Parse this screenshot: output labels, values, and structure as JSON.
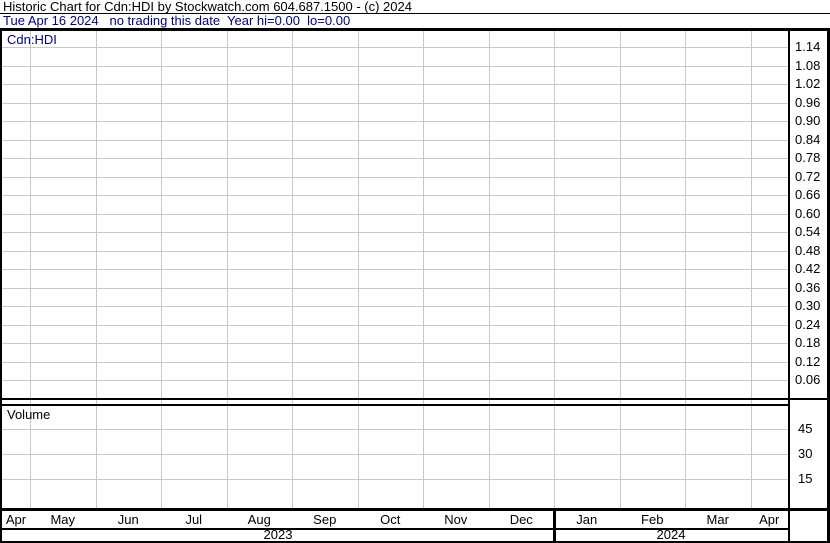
{
  "header": {
    "title": "Historic Chart for Cdn:HDI by Stockwatch.com 604.687.1500 - (c) 2024",
    "status": "Tue Apr 16 2024   no trading this date  Year hi=0.00  lo=0.00"
  },
  "chart_data": {
    "type": "line",
    "title": "Historic Chart for Cdn:HDI",
    "symbol": "Cdn:HDI",
    "year_hi": "0.00",
    "year_lo": "0.00",
    "price_panel": {
      "label": "Cdn:HDI",
      "ticks": [
        "1.14",
        "1.08",
        "1.02",
        "0.96",
        "0.90",
        "0.84",
        "0.78",
        "0.72",
        "0.66",
        "0.60",
        "0.54",
        "0.48",
        "0.42",
        "0.36",
        "0.30",
        "0.24",
        "0.18",
        "0.12",
        "0.06"
      ],
      "tick_step": 0.06,
      "series": []
    },
    "volume_panel": {
      "label": "Volume",
      "ticks": [
        "45",
        "30",
        "15"
      ],
      "series": []
    },
    "x_axis": {
      "month_labels": [
        "Apr",
        "May",
        "Jun",
        "Jul",
        "Aug",
        "Sep",
        "Oct",
        "Nov",
        "Dec",
        "Jan",
        "Feb",
        "Mar",
        "Apr"
      ],
      "year_labels": [
        "2023",
        "2024"
      ]
    },
    "grid": true,
    "legend": "none"
  },
  "colors": {
    "background": "#ffffff",
    "border": "#000000",
    "gridline": "#c8c8c8",
    "title_text": "#000000",
    "status_text": "#000080",
    "symbol_text": "#000080"
  }
}
